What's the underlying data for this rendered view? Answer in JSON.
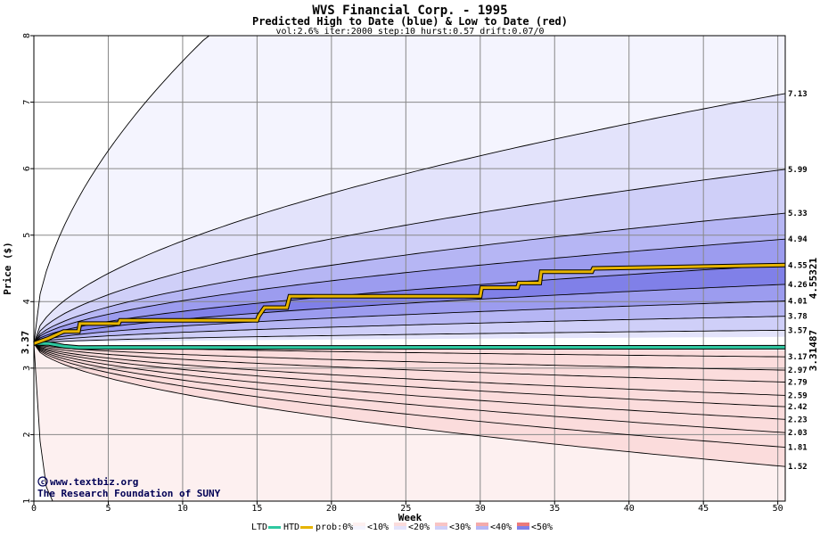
{
  "chart_data": {
    "type": "area",
    "title": "WVS Financial Corp. - 1995",
    "subtitle": "Predicted High to Date (blue) &  Low to Date (red)",
    "params": "vol:2.6% iter:2000 step:10 hurst:0.57 drift:0.07/0",
    "xlabel": "Week",
    "ylabel": "Price ($)",
    "xlim": [
      0,
      50.5
    ],
    "ylim": [
      1,
      8
    ],
    "x_ticks": [
      0,
      5,
      10,
      15,
      20,
      25,
      30,
      35,
      40,
      45,
      50
    ],
    "y_ticks": [
      1,
      2,
      3,
      4,
      5,
      6,
      7,
      8
    ],
    "start_price": 3.37,
    "start_label": "3.37",
    "htd_final": 4.55321,
    "htd_final_label": "4.55321",
    "ltd_final": 3.31487,
    "ltd_final_label": "3.31487",
    "right_labels": [
      "7.13",
      "5.99",
      "5.33",
      "4.94",
      "4.55",
      "4.26",
      "4.01",
      "3.78",
      "3.57",
      "3.17",
      "2.97",
      "2.79",
      "2.59",
      "2.42",
      "2.23",
      "2.03",
      "1.81",
      "1.52"
    ],
    "blue_bands_at_week_50": [
      7.13,
      5.99,
      5.33,
      4.94,
      4.55,
      4.26,
      4.01,
      3.78,
      3.57
    ],
    "red_bands_at_week_50": [
      3.17,
      2.97,
      2.79,
      2.59,
      2.42,
      2.23,
      2.03,
      1.81,
      1.52
    ],
    "outer_high_envelope_reaches_8_at_week": 11.7,
    "outer_low_envelope_at_week_22": 1.0,
    "htd_steps": [
      [
        0,
        3.37
      ],
      [
        1,
        3.45
      ],
      [
        2,
        3.55
      ],
      [
        3,
        3.55
      ],
      [
        3.1,
        3.67
      ],
      [
        5.7,
        3.67
      ],
      [
        5.8,
        3.72
      ],
      [
        15,
        3.72
      ],
      [
        15.1,
        3.78
      ],
      [
        15.5,
        3.91
      ],
      [
        17,
        3.91
      ],
      [
        17.2,
        4.08
      ],
      [
        30,
        4.08
      ],
      [
        30.1,
        4.21
      ],
      [
        32.5,
        4.21
      ],
      [
        32.6,
        4.28
      ],
      [
        34,
        4.28
      ],
      [
        34.1,
        4.45
      ],
      [
        37.5,
        4.45
      ],
      [
        37.6,
        4.5
      ],
      [
        50.5,
        4.55
      ]
    ],
    "ltd_series": [
      [
        0,
        3.37
      ],
      [
        1,
        3.37
      ],
      [
        2,
        3.33
      ],
      [
        3,
        3.31
      ],
      [
        50.5,
        3.31487
      ]
    ],
    "legend": {
      "ltd": "LTD",
      "htd": "HTD",
      "prob": "prob:0%",
      "bins": [
        "<10%",
        "<20%",
        "<30%",
        "<40%",
        "<50%"
      ]
    },
    "colors": {
      "blue_fills": [
        "#f4f4fe",
        "#e3e3fb",
        "#cfcff8",
        "#b6b6f4",
        "#9c9cef",
        "#8080e8"
      ],
      "red_fills": [
        "#fdf0f0",
        "#fbdcdc",
        "#f8c4c4",
        "#f4aaaa",
        "#f09090",
        "#ec7a7a"
      ],
      "htd_line": "#e6b400",
      "ltd_line": "#2ec8a0",
      "start_label": "#006600",
      "htd_label": "#886600",
      "ltd_label": "#009966",
      "grid": "#888888"
    },
    "credit_line1": "www.textbiz.org",
    "credit_line2": "The Research Foundation of SUNY"
  }
}
